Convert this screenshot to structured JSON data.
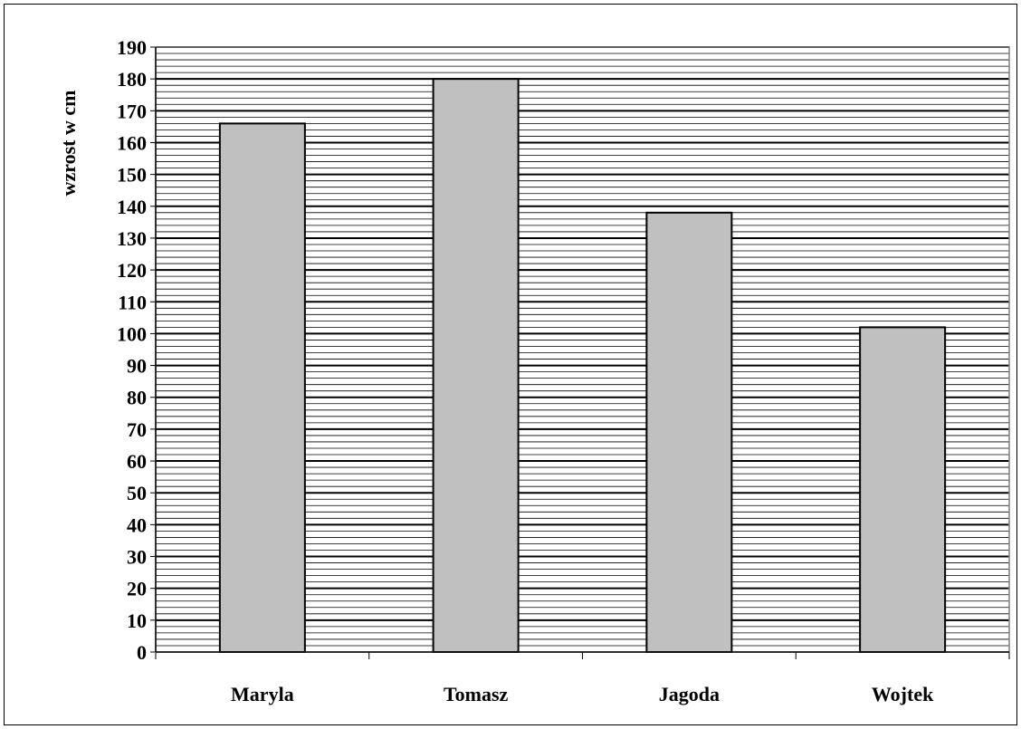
{
  "chart_data": {
    "type": "bar",
    "categories": [
      "Maryla",
      "Tomasz",
      "Jagoda",
      "Wojtek"
    ],
    "values": [
      166,
      180,
      138,
      102
    ],
    "title": "",
    "xlabel": "",
    "ylabel": "wzrost w cm",
    "ylim": [
      0,
      190
    ],
    "yticks": [
      0,
      10,
      20,
      30,
      40,
      50,
      60,
      70,
      80,
      90,
      100,
      110,
      120,
      130,
      140,
      150,
      160,
      170,
      180,
      190
    ],
    "grid": true,
    "legend": "none",
    "colors": {
      "bar_fill": "#c0c0c0",
      "bar_stroke": "#000000",
      "gridline": "#000000"
    }
  }
}
